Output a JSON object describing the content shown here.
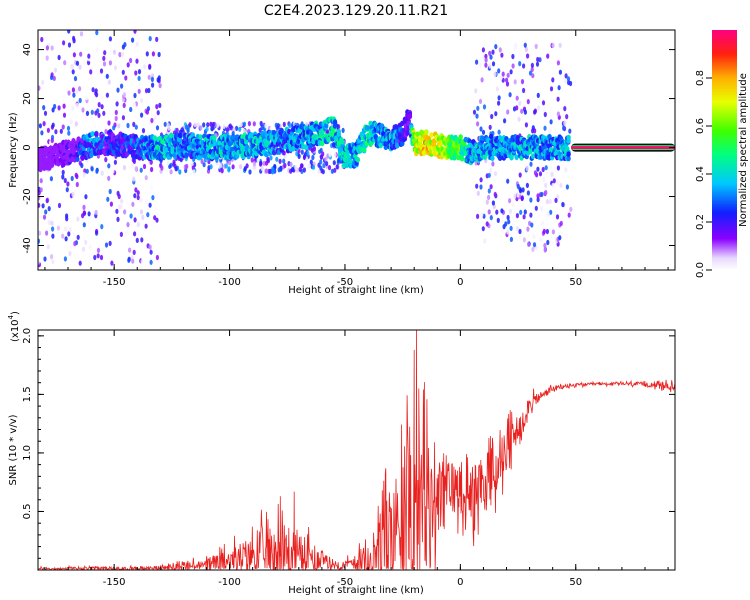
{
  "title": "C2E4.2023.129.20.11.R21",
  "colors": {
    "snr_line": "#e8211f",
    "axis": "#000000",
    "background": "#ffffff"
  },
  "chart_data": [
    {
      "type": "heatmap",
      "name": "spectrogram",
      "xlabel": "Height of straight line (km)",
      "ylabel": "Frequency (Hz)",
      "xlim": [
        -183,
        93
      ],
      "ylim": [
        -50,
        48
      ],
      "xticks": [
        -150,
        -100,
        -50,
        0,
        50
      ],
      "yticks": [
        -40,
        -20,
        0,
        20,
        40
      ],
      "xtick_labels": [
        "-150",
        "-100",
        "-50",
        "0",
        "50"
      ],
      "ytick_labels": [
        "-40",
        "-20",
        "0",
        "20",
        "40"
      ],
      "colorbar": {
        "label": "Normalized spectral amplitude",
        "range": [
          0,
          1
        ],
        "ticks": [
          0.0,
          0.2,
          0.4,
          0.6,
          0.8
        ],
        "tick_labels": [
          "0.0",
          "0.2",
          "0.4",
          "0.6",
          "0.8"
        ]
      },
      "ridge": {
        "x": [
          -183,
          -170,
          -160,
          -150,
          -140,
          -130,
          -120,
          -110,
          -100,
          -90,
          -80,
          -70,
          -60,
          -55,
          -50,
          -45,
          -40,
          -35,
          -30,
          -25,
          -22,
          -20,
          -15,
          -10,
          -5,
          0,
          5,
          10,
          20,
          30,
          40,
          47,
          50,
          70,
          93
        ],
        "y": [
          -5,
          -2,
          1,
          2,
          0,
          0,
          1,
          0,
          0,
          1,
          2,
          4,
          6,
          8,
          -4,
          -3,
          6,
          5,
          3,
          6,
          12,
          2,
          2,
          1,
          0,
          0,
          -2,
          0,
          0,
          0,
          0,
          0,
          0,
          0,
          0
        ],
        "amp": [
          0.1,
          0.2,
          0.4,
          0.3,
          0.35,
          0.5,
          0.4,
          0.45,
          0.45,
          0.5,
          0.4,
          0.45,
          0.5,
          0.5,
          0.5,
          0.45,
          0.55,
          0.45,
          0.45,
          0.3,
          0.2,
          0.8,
          0.85,
          0.8,
          0.7,
          0.65,
          0.45,
          0.45,
          0.45,
          0.45,
          0.45,
          0.45,
          0.95,
          0.97,
          0.98
        ]
      },
      "scatter_bands": [
        {
          "x_range": [
            -183,
            -130
          ],
          "y_spread": 48,
          "amp_max": 0.3
        },
        {
          "x_range": [
            -130,
            -50
          ],
          "y_spread": 10,
          "amp_max": 0.35
        },
        {
          "x_range": [
            6,
            48
          ],
          "y_spread": 42,
          "amp_max": 0.3
        }
      ],
      "tone_band": {
        "x_range": [
          48,
          93
        ],
        "y": 0,
        "amp": 0.98
      }
    },
    {
      "type": "line",
      "name": "snr",
      "xlabel": "Height of straight line (km)",
      "ylabel": "SNR (10 * v/v)",
      "scale_label": "(x10",
      "scale_exponent": "4",
      "scale_close": ")",
      "xlim": [
        -183,
        93
      ],
      "ylim": [
        0,
        20500
      ],
      "xticks": [
        -150,
        -100,
        -50,
        0,
        50
      ],
      "yticks": [
        5000,
        10000,
        15000,
        20000
      ],
      "xtick_labels": [
        "-150",
        "-100",
        "-50",
        "0",
        "50"
      ],
      "ytick_labels": [
        "0.5",
        "1.0",
        "1.5",
        "2.0"
      ],
      "envelope": {
        "x": [
          -183,
          -150,
          -130,
          -110,
          -100,
          -90,
          -85,
          -80,
          -75,
          -70,
          -65,
          -60,
          -55,
          -50,
          -45,
          -40,
          -35,
          -30,
          -25,
          -20,
          -15,
          -10,
          -5,
          0,
          5,
          10,
          15,
          20,
          25,
          30,
          40,
          50,
          60,
          70,
          80,
          85,
          93
        ],
        "base": [
          100,
          150,
          200,
          400,
          900,
          1300,
          1500,
          1700,
          1600,
          1500,
          1100,
          700,
          500,
          400,
          600,
          900,
          1500,
          3000,
          5000,
          6000,
          5500,
          6000,
          7000,
          7000,
          6500,
          7200,
          8500,
          10000,
          12000,
          14200,
          15500,
          15800,
          15900,
          15900,
          15850,
          15850,
          15600
        ],
        "amp": [
          200,
          250,
          300,
          900,
          1800,
          3000,
          4000,
          4800,
          4600,
          3800,
          3000,
          1500,
          800,
          700,
          1500,
          3000,
          5500,
          7500,
          9500,
          14000,
          12000,
          8000,
          5000,
          4000,
          4500,
          5000,
          4500,
          3500,
          2500,
          1200,
          400,
          250,
          200,
          200,
          400,
          500,
          600
        ]
      },
      "spikes": [
        {
          "x": -20,
          "y": 18800
        },
        {
          "x": -19,
          "y": 21000
        },
        {
          "x": -18,
          "y": 15500
        },
        {
          "x": -22,
          "y": 11500
        },
        {
          "x": -72,
          "y": 6700
        },
        {
          "x": -78,
          "y": 6300
        }
      ]
    }
  ]
}
